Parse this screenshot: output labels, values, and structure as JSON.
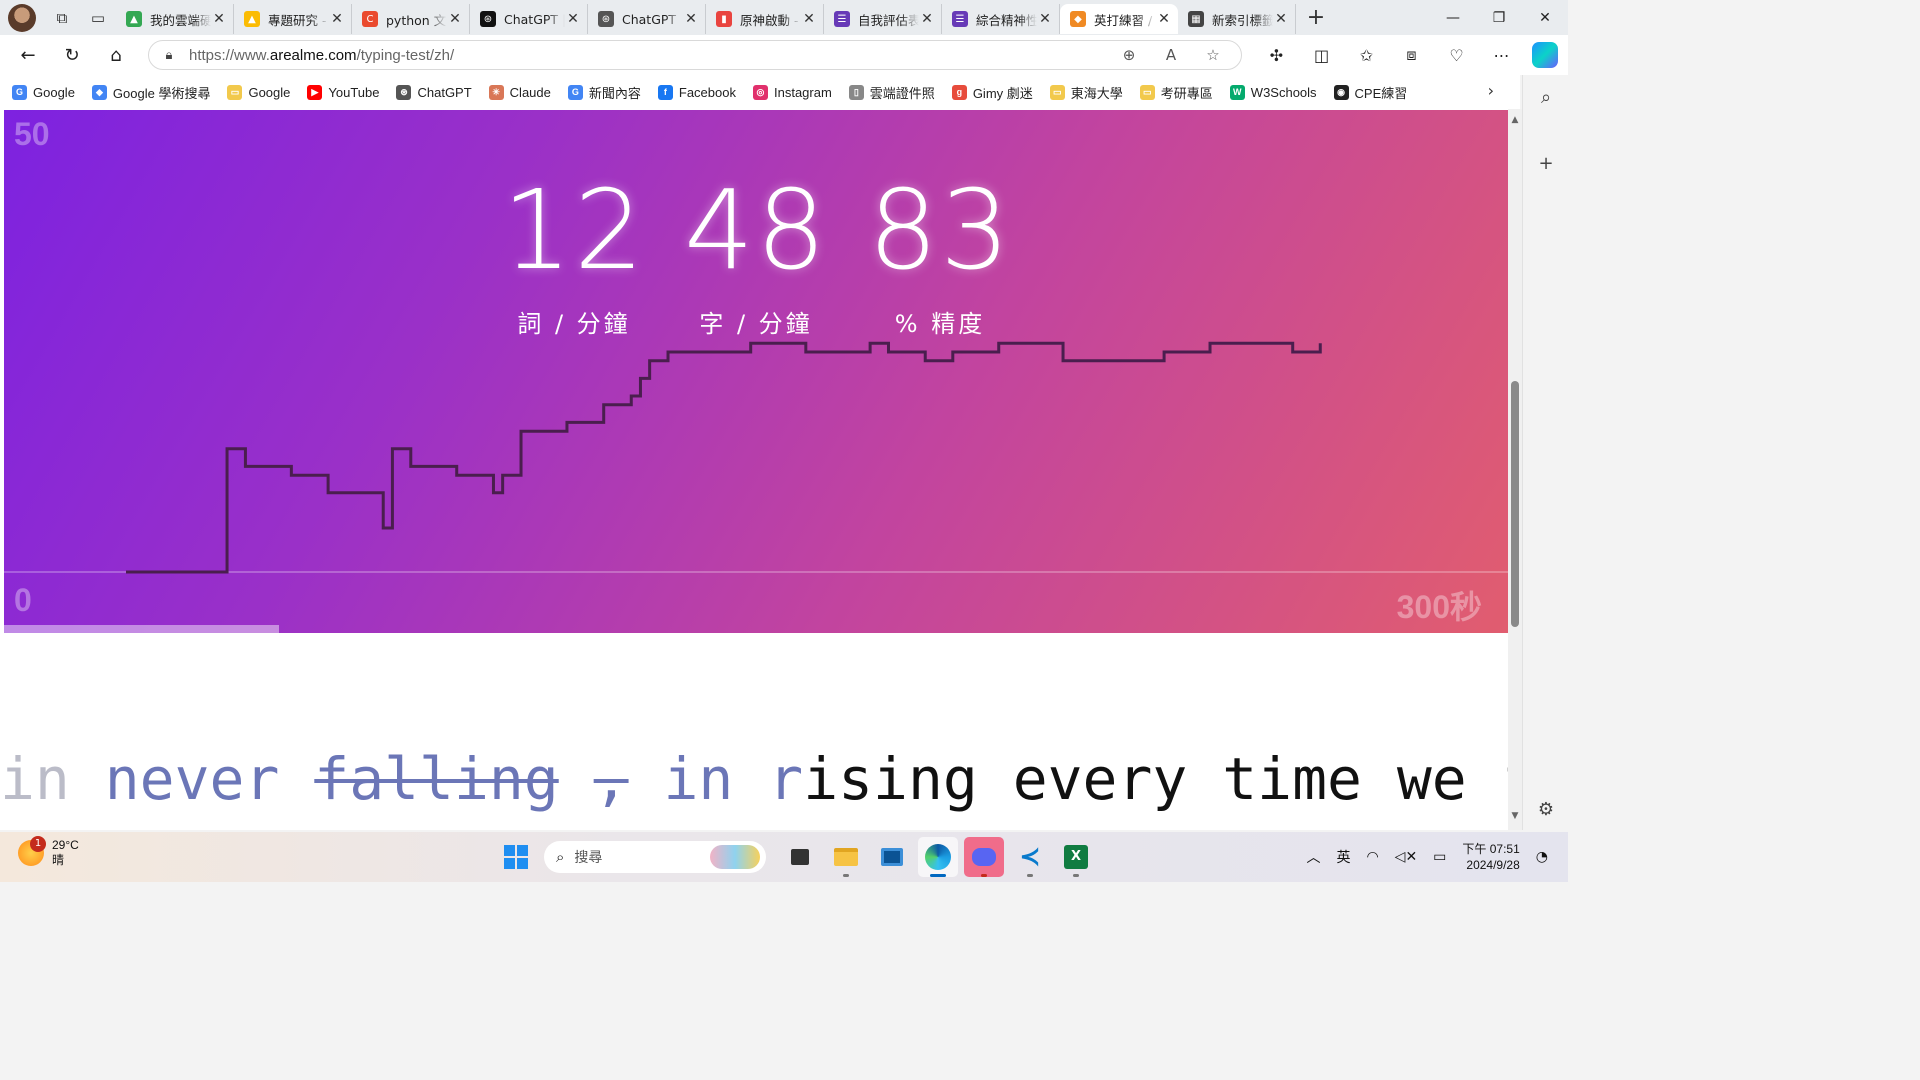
{
  "browser": {
    "tabs": [
      {
        "title": "我的雲端硬碟",
        "color": "#34a853",
        "glyph": "▲"
      },
      {
        "title": "專題研究 - Google 雲端硬碟",
        "color": "#fbbc04",
        "glyph": "▲"
      },
      {
        "title": "python 文件",
        "color": "#ea4a2e",
        "glyph": "C"
      },
      {
        "title": "ChatGPT | OpenAI",
        "color": "#111111",
        "glyph": "⊛"
      },
      {
        "title": "ChatGPT",
        "color": "#555555",
        "glyph": "⊛"
      },
      {
        "title": "原神啟動 - 巴哈姆特",
        "color": "#e9443f",
        "glyph": "▮"
      },
      {
        "title": "自我評估表單",
        "color": "#673ab7",
        "glyph": "☰"
      },
      {
        "title": "綜合精神性測驗",
        "color": "#673ab7",
        "glyph": "☰"
      },
      {
        "title": "英打練習 / arealme",
        "color": "#f08a24",
        "glyph": "◆",
        "active": true
      },
      {
        "title": "新索引標籤",
        "color": "#444444",
        "glyph": "▦"
      }
    ],
    "address": {
      "prefix": "https://www.",
      "domain": "arealme.com",
      "path": "/typing-test/zh/"
    },
    "favorites": [
      {
        "label": "Google",
        "icon": "G",
        "color": "#4285f4"
      },
      {
        "label": "Google 學術搜尋",
        "icon": "◆",
        "color": "#4285f4"
      },
      {
        "label": "Google",
        "icon": "▭",
        "color": "#f2c94c"
      },
      {
        "label": "YouTube",
        "icon": "▶",
        "color": "#ff0000"
      },
      {
        "label": "ChatGPT",
        "icon": "⊛",
        "color": "#555555"
      },
      {
        "label": "Claude",
        "icon": "✳",
        "color": "#d97757"
      },
      {
        "label": "新聞內容",
        "icon": "G",
        "color": "#4285f4"
      },
      {
        "label": "Facebook",
        "icon": "f",
        "color": "#1877f2"
      },
      {
        "label": "Instagram",
        "icon": "◎",
        "color": "#e1306c"
      },
      {
        "label": "雲端證件照",
        "icon": "▯",
        "color": "#888888"
      },
      {
        "label": "Gimy 劇迷",
        "icon": "g",
        "color": "#e74c3c"
      },
      {
        "label": "東海大學",
        "icon": "▭",
        "color": "#f2c94c"
      },
      {
        "label": "考研專區",
        "icon": "▭",
        "color": "#f2c94c"
      },
      {
        "label": "W3Schools",
        "icon": "W",
        "color": "#04aa6d"
      },
      {
        "label": "CPE練習",
        "icon": "◉",
        "color": "#222222"
      }
    ]
  },
  "test": {
    "y_max_label": "50",
    "y_min_label": "0",
    "x_max_label": "300秒",
    "wpm": "12",
    "wpm_label": "詞 / 分鐘",
    "cpm": "48",
    "cpm_label": "字 / 分鐘",
    "accuracy": "83",
    "accuracy_label": "% 精度",
    "elapsed_fraction": 0.183
  },
  "chart_data": {
    "type": "line",
    "title": "",
    "xlabel": "",
    "ylabel": "",
    "xlim": [
      0,
      300
    ],
    "ylim": [
      0,
      50
    ],
    "step": true,
    "x": [
      0,
      20,
      22,
      26,
      36,
      44,
      56,
      58,
      62,
      72,
      80,
      82,
      86,
      96,
      104,
      110,
      112,
      114,
      118,
      136,
      148,
      162,
      166,
      174,
      180,
      190,
      204,
      226,
      236,
      254,
      260
    ],
    "y": [
      0,
      0,
      14,
      12,
      11,
      9,
      5,
      14,
      12,
      11,
      9,
      11,
      16,
      17,
      19,
      20,
      22,
      24,
      25,
      26,
      25,
      26,
      25,
      24,
      25,
      26,
      24,
      25,
      26,
      25,
      26
    ]
  },
  "typing_words": {
    "before_fade": "in",
    "correct": "never",
    "wrong1": "falling",
    "wrong2": ",",
    "correct2": "in",
    "current_done": "r",
    "current_rest": "ising",
    "next": "every time we",
    "dim": "fa"
  },
  "taskbar": {
    "weather_temp": "29°C",
    "weather_desc": "晴",
    "weather_badge": "1",
    "search_placeholder": "搜尋",
    "ime": "英",
    "time": "下午 07:51",
    "date": "2024/9/28"
  }
}
